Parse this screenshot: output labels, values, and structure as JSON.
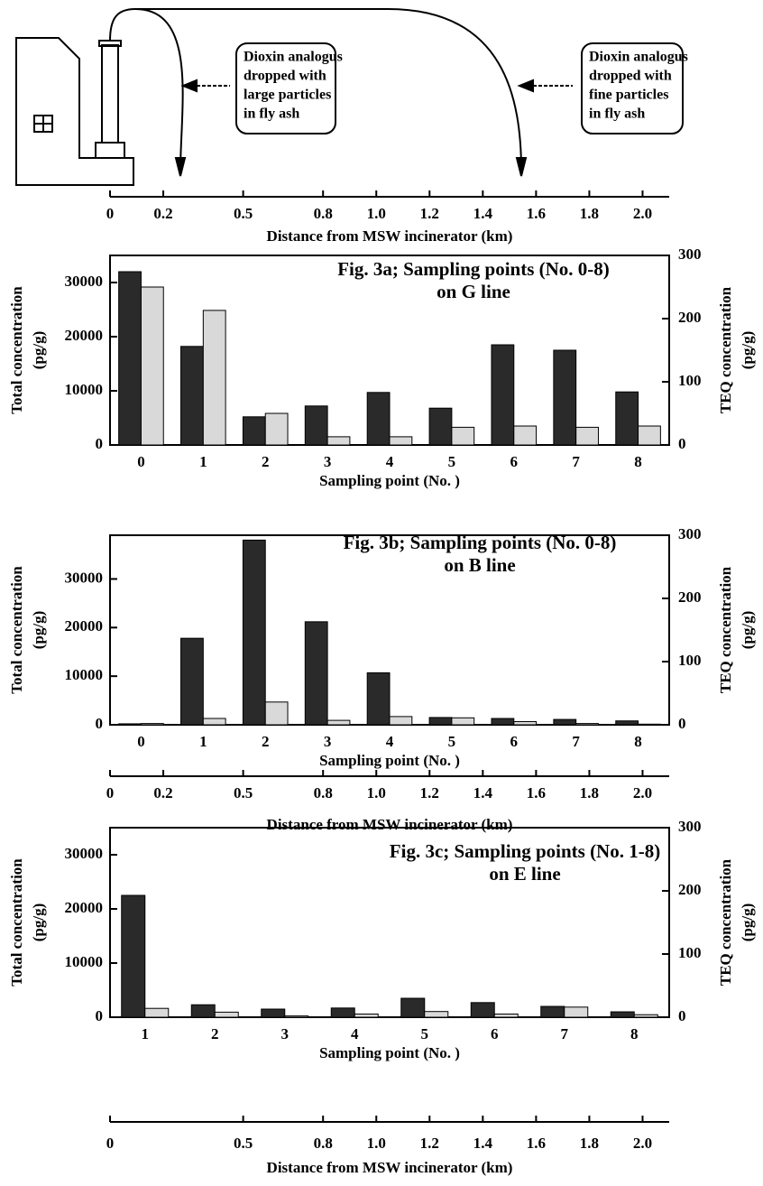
{
  "diagram": {
    "boxes": [
      [
        "Dioxin analogus",
        "dropped with",
        "large particles",
        "in fly ash"
      ],
      [
        "Dioxin analogus",
        "dropped with",
        "fine particles",
        "in fly ash"
      ]
    ]
  },
  "distance_axes": [
    {
      "xlim": [
        0,
        2.1
      ],
      "xticks": [
        0,
        0.2,
        0.5,
        0.8,
        {
          "value": 1,
          "label": "1.0"
        },
        1.2,
        1.4,
        1.6,
        1.8,
        {
          "value": 2,
          "label": "2.0"
        }
      ],
      "xlabel": "Distance from MSW incinerator (km)"
    },
    {
      "xlim": [
        0,
        2.1
      ],
      "xticks": [
        0,
        0.2,
        0.5,
        0.8,
        {
          "value": 1,
          "label": "1.0"
        },
        1.2,
        1.4,
        1.6,
        1.8,
        {
          "value": 2,
          "label": "2.0"
        }
      ],
      "xlabel": "Distance from MSW incinerator (km)"
    },
    {
      "xlim": [
        0,
        2.1
      ],
      "xticks": [
        0,
        0.5,
        0.8,
        {
          "value": 1,
          "label": "1.0"
        },
        1.2,
        1.4,
        1.6,
        1.8,
        {
          "value": 2,
          "label": "2.0"
        }
      ],
      "xlabel": "Distance from MSW incinerator (km)"
    }
  ],
  "chart_data": [
    {
      "type": "bar",
      "title": "Fig. 3a; Sampling points (No. 0-8)",
      "subtitle": "on G line",
      "categories": [
        "0",
        "1",
        "2",
        "3",
        "4",
        "5",
        "6",
        "7",
        "8"
      ],
      "xlabel": "Sampling point (No. )",
      "ylabel": [
        "Total  concentration",
        "(pg/g)"
      ],
      "y2label": [
        "TEQ concentration",
        "(pg/g)"
      ],
      "ylim": [
        0,
        35000
      ],
      "yticks": [
        0,
        10000,
        20000,
        30000
      ],
      "y2lim": [
        0,
        300
      ],
      "y2ticks": [
        0,
        100,
        200,
        300
      ],
      "series": [
        {
          "color": "#2a2a2a",
          "values": [
            32000,
            18200,
            5200,
            7200,
            9700,
            6800,
            18500,
            17500,
            9800
          ]
        },
        {
          "color": "#d9d9d9",
          "axis": "y2",
          "values": [
            250,
            213,
            50,
            13,
            13,
            28,
            30,
            28,
            30
          ]
        }
      ]
    },
    {
      "type": "bar",
      "title": "Fig. 3b; Sampling points (No. 0-8)",
      "subtitle": "on B line",
      "categories": [
        "0",
        "1",
        "2",
        "3",
        "4",
        "5",
        "6",
        "7",
        "8"
      ],
      "xlabel": "Sampling point (No. )",
      "ylabel": [
        "Total  concentration",
        "(pg/g)"
      ],
      "y2label": [
        "TEQ concentration",
        "(pg/g)"
      ],
      "ylim": [
        0,
        39000
      ],
      "yticks": [
        0,
        10000,
        20000,
        30000
      ],
      "y2lim": [
        0,
        300
      ],
      "y2ticks": [
        0,
        100,
        200,
        300
      ],
      "series": [
        {
          "color": "#2a2a2a",
          "values": [
            200,
            17800,
            38000,
            21200,
            10700,
            1500,
            1300,
            1100,
            800
          ]
        },
        {
          "color": "#d9d9d9",
          "axis": "y2",
          "values": [
            2,
            10,
            36,
            7,
            13,
            11,
            5,
            2,
            1
          ]
        }
      ]
    },
    {
      "type": "bar",
      "title": "Fig. 3c; Sampling points (No. 1-8)",
      "subtitle": "on E line",
      "categories": [
        "1",
        "2",
        "3",
        "4",
        "5",
        "6",
        "7",
        "8"
      ],
      "xlabel": "Sampling point (No. )",
      "ylabel": [
        "Total  concentration",
        "(pg/g)"
      ],
      "y2label": [
        "TEQ concentration",
        "(pg/g)"
      ],
      "ylim": [
        0,
        35000
      ],
      "yticks": [
        0,
        10000,
        20000,
        30000
      ],
      "y2lim": [
        0,
        300
      ],
      "y2ticks": [
        0,
        100,
        200,
        300
      ],
      "series": [
        {
          "color": "#2a2a2a",
          "values": [
            22500,
            2300,
            1500,
            1700,
            3500,
            2700,
            2000,
            1000
          ]
        },
        {
          "color": "#d9d9d9",
          "axis": "y2",
          "values": [
            14,
            8,
            2,
            5,
            9,
            5,
            16,
            4
          ]
        }
      ]
    }
  ]
}
